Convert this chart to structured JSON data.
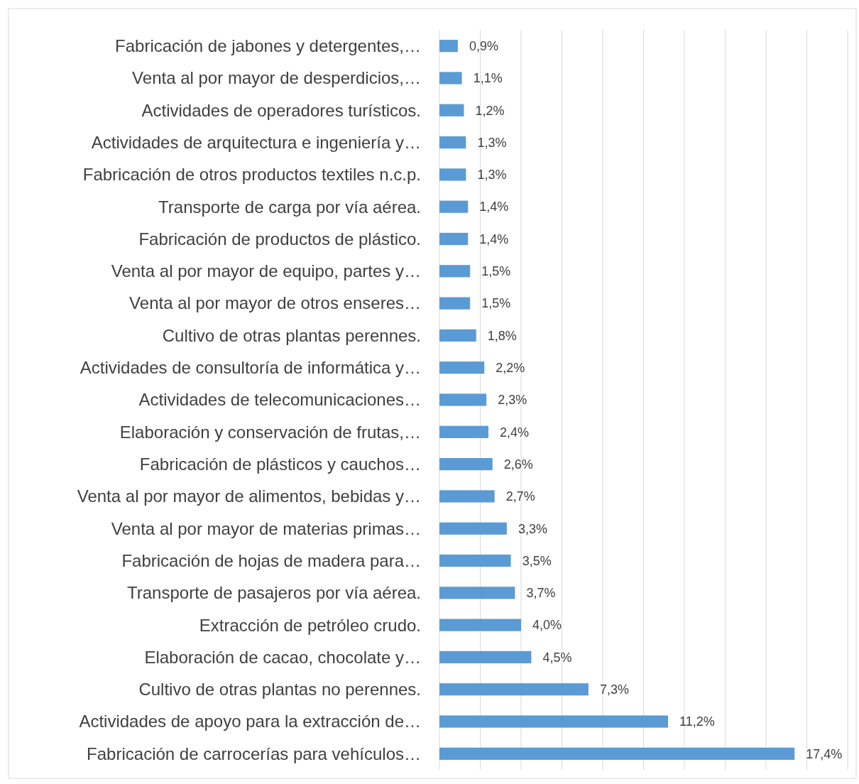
{
  "chart_data": {
    "type": "bar",
    "orientation": "horizontal",
    "categories": [
      "Fabricación de jabones y detergentes,…",
      "Venta al por mayor de desperdicios,…",
      "Actividades de operadores turísticos.",
      "Actividades de arquitectura e ingeniería y…",
      "Fabricación de otros productos textiles n.c.p.",
      "Transporte de carga por vía aérea.",
      "Fabricación de productos de plástico.",
      "Venta al por mayor de equipo, partes y…",
      "Venta al por mayor de otros enseres…",
      "Cultivo de otras plantas perennes.",
      "Actividades de consultoría de informática y…",
      "Actividades de telecomunicaciones…",
      "Elaboración y conservación de frutas,…",
      "Fabricación de plásticos y cauchos…",
      "Venta al por mayor de alimentos, bebidas y…",
      "Venta al por mayor de materias primas…",
      "Fabricación de hojas de madera para…",
      "Transporte de pasajeros por vía aérea.",
      "Extracción de petróleo crudo.",
      "Elaboración de cacao, chocolate y…",
      "Cultivo de otras plantas no perennes.",
      "Actividades de apoyo para la extracción de…",
      "Fabricación de carrocerías para vehículos…"
    ],
    "values": [
      0.9,
      1.1,
      1.2,
      1.3,
      1.3,
      1.4,
      1.4,
      1.5,
      1.5,
      1.8,
      2.2,
      2.3,
      2.4,
      2.6,
      2.7,
      3.3,
      3.5,
      3.7,
      4.0,
      4.5,
      7.3,
      11.2,
      17.4
    ],
    "value_labels": [
      "0,9%",
      "1,1%",
      "1,2%",
      "1,3%",
      "1,3%",
      "1,4%",
      "1,4%",
      "1,5%",
      "1,5%",
      "1,8%",
      "2,2%",
      "2,3%",
      "2,4%",
      "2,6%",
      "2,7%",
      "3,3%",
      "3,5%",
      "3,7%",
      "4,0%",
      "4,5%",
      "7,3%",
      "11,2%",
      "17,4%"
    ],
    "color": "#5b9bd5",
    "xlim": [
      0,
      20
    ],
    "xticks": [
      {
        "value": 0,
        "label": null
      },
      {
        "value": 2,
        "label": null
      },
      {
        "value": 4,
        "label": null
      },
      {
        "value": 6,
        "label": null
      },
      {
        "value": 8,
        "label": null
      },
      {
        "value": 10,
        "label": null
      },
      {
        "value": 12,
        "label": null
      },
      {
        "value": 14,
        "label": null
      },
      {
        "value": 16,
        "label": null
      },
      {
        "value": 18,
        "label": null
      },
      {
        "value": 20,
        "label": null
      }
    ],
    "grid": "x",
    "tick_labels": "y"
  }
}
